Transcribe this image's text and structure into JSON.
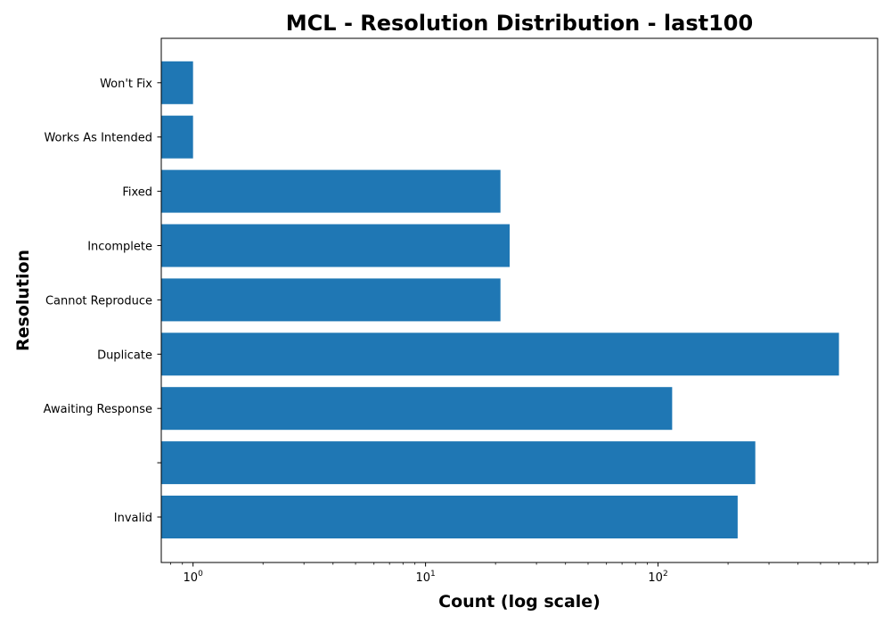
{
  "chart_data": {
    "type": "bar",
    "orientation": "horizontal",
    "title": "MCL - Resolution Distribution - last100",
    "xlabel": "Count (log scale)",
    "ylabel": "Resolution",
    "x_scale": "log",
    "xlim": [
      0.73,
      880
    ],
    "x_ticks": [
      {
        "value": 1,
        "base": "10",
        "exp": "0"
      },
      {
        "value": 10,
        "base": "10",
        "exp": "1"
      },
      {
        "value": 100,
        "base": "10",
        "exp": "2"
      }
    ],
    "categories": [
      "Invalid",
      "",
      "Awaiting Response",
      "Duplicate",
      "Cannot Reproduce",
      "Incomplete",
      "Fixed",
      "Works As Intended",
      "Won't Fix"
    ],
    "values": [
      220,
      262,
      115,
      600,
      21,
      23,
      21,
      1,
      1
    ],
    "bar_color": "#1f77b4",
    "grid": false,
    "legend": "none"
  }
}
